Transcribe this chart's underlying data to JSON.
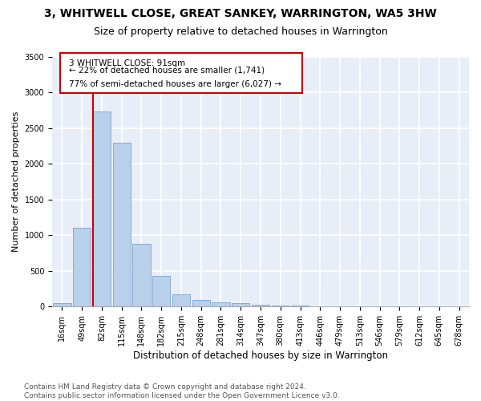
{
  "title1": "3, WHITWELL CLOSE, GREAT SANKEY, WARRINGTON, WA5 3HW",
  "title2": "Size of property relative to detached houses in Warrington",
  "xlabel": "Distribution of detached houses by size in Warrington",
  "ylabel": "Number of detached properties",
  "categories": [
    "16sqm",
    "49sqm",
    "82sqm",
    "115sqm",
    "148sqm",
    "182sqm",
    "215sqm",
    "248sqm",
    "281sqm",
    "314sqm",
    "347sqm",
    "380sqm",
    "413sqm",
    "446sqm",
    "479sqm",
    "513sqm",
    "546sqm",
    "579sqm",
    "612sqm",
    "645sqm",
    "678sqm"
  ],
  "values": [
    50,
    1100,
    2730,
    2290,
    880,
    430,
    170,
    95,
    55,
    45,
    30,
    20,
    10,
    5,
    2,
    2,
    2,
    2,
    2,
    2,
    2
  ],
  "bar_color": "#b8d0ea",
  "bar_edgecolor": "#6699cc",
  "annotation_label": "3 WHITWELL CLOSE: 91sqm",
  "annotation_pct_smaller": "22%",
  "annotation_count_smaller": "1,741",
  "annotation_pct_larger": "77%",
  "annotation_count_larger": "6,027",
  "vline_color": "#cc0000",
  "vline_bar_index": 2,
  "ylim": [
    0,
    3500
  ],
  "yticks": [
    0,
    500,
    1000,
    1500,
    2000,
    2500,
    3000,
    3500
  ],
  "background_color": "#e8eef8",
  "grid_color": "#ffffff",
  "footer": "Contains HM Land Registry data © Crown copyright and database right 2024.\nContains public sector information licensed under the Open Government Licence v3.0.",
  "title1_fontsize": 10,
  "title2_fontsize": 9,
  "xlabel_fontsize": 8.5,
  "ylabel_fontsize": 8,
  "tick_fontsize": 7,
  "annotation_fontsize": 7.5,
  "footer_fontsize": 6.5
}
